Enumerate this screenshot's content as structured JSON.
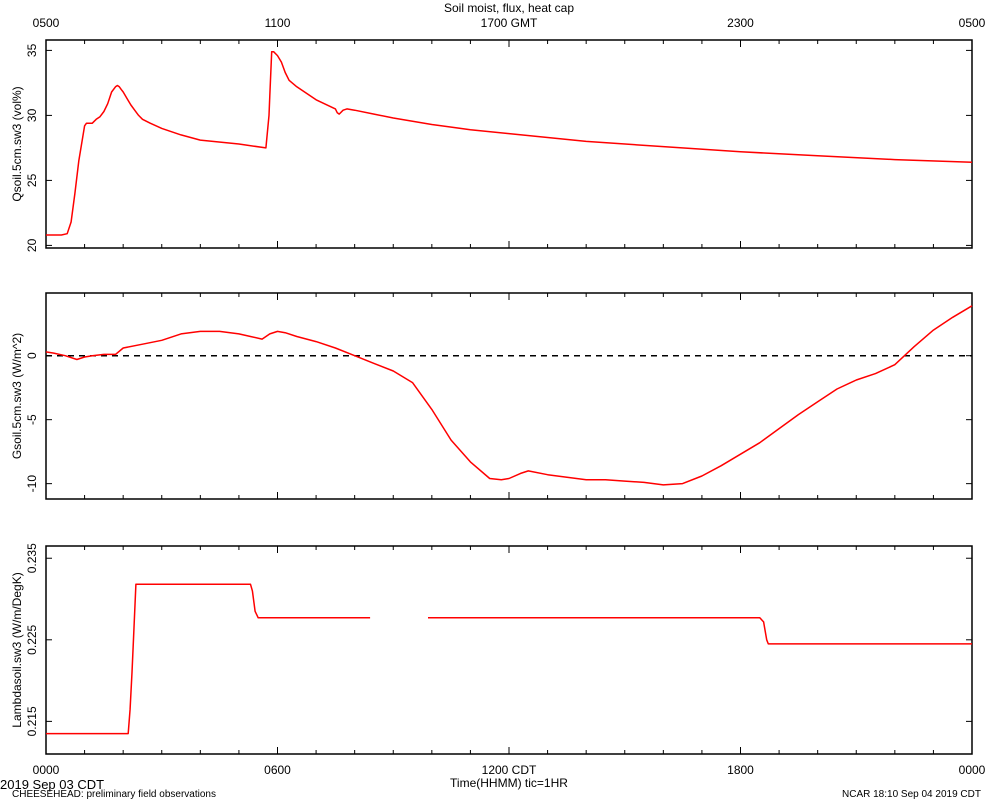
{
  "chart_data": [
    {
      "type": "line",
      "title": "Soil moist, flux, heat cap",
      "ylabel": "Qsoil.5cm.sw3 (vol%)",
      "ylim": [
        19.8,
        35.8
      ],
      "yticks": [
        20,
        25,
        30,
        35
      ],
      "xlim": [
        0,
        24
      ],
      "top_axis_ticks": [
        "0500",
        "1100",
        "1700 GMT",
        "2300",
        "0500"
      ],
      "series": [
        {
          "color": "#ff0000",
          "x": [
            0,
            0.4,
            0.55,
            0.65,
            0.75,
            0.85,
            1.0,
            1.05,
            1.1,
            1.2,
            1.3,
            1.4,
            1.5,
            1.6,
            1.7,
            1.8,
            1.85,
            1.9,
            1.95,
            2.0,
            2.1,
            2.2,
            2.3,
            2.4,
            2.5,
            2.7,
            3.0,
            3.5,
            4.0,
            5.0,
            5.7,
            5.78,
            5.8,
            5.85,
            5.9,
            6.0,
            6.1,
            6.2,
            6.3,
            6.5,
            7.0,
            7.5,
            7.55,
            7.6,
            7.7,
            7.8,
            8.0,
            8.5,
            9.0,
            10.0,
            11.0,
            12.0,
            14.0,
            16.0,
            18.0,
            20.0,
            22.0,
            24.0
          ],
          "y": [
            20.8,
            20.8,
            20.9,
            21.8,
            24.0,
            26.5,
            29.2,
            29.4,
            29.4,
            29.4,
            29.7,
            29.9,
            30.3,
            30.9,
            31.8,
            32.2,
            32.3,
            32.2,
            32.0,
            31.8,
            31.3,
            30.8,
            30.4,
            30.0,
            29.7,
            29.4,
            29.0,
            28.5,
            28.1,
            27.8,
            27.5,
            30.0,
            31.5,
            34.9,
            34.9,
            34.6,
            34.1,
            33.3,
            32.7,
            32.2,
            31.2,
            30.5,
            30.2,
            30.1,
            30.4,
            30.5,
            30.4,
            30.1,
            29.8,
            29.3,
            28.9,
            28.6,
            28.0,
            27.6,
            27.2,
            26.9,
            26.6,
            26.4
          ]
        }
      ]
    },
    {
      "type": "line",
      "ylabel": "Gsoil.5cm.sw3 (W/m^2)",
      "ylim": [
        -11.2,
        4.9
      ],
      "yticks": [
        -10,
        -5,
        0
      ],
      "xlim": [
        0,
        24
      ],
      "reference_line": 0,
      "series": [
        {
          "color": "#ff0000",
          "x": [
            0,
            0.2,
            0.5,
            0.8,
            1.0,
            1.2,
            1.5,
            1.8,
            2.0,
            2.5,
            3.0,
            3.5,
            4.0,
            4.5,
            5.0,
            5.3,
            5.6,
            5.8,
            6.0,
            6.2,
            6.5,
            7.0,
            7.5,
            8.0,
            8.5,
            9.0,
            9.5,
            10.0,
            10.5,
            11.0,
            11.5,
            11.8,
            12.0,
            12.3,
            12.5,
            13.0,
            13.5,
            14.0,
            14.5,
            15.0,
            15.5,
            16.0,
            16.5,
            17.0,
            17.5,
            18.0,
            18.5,
            19.0,
            19.5,
            20.0,
            20.5,
            21.0,
            21.5,
            22.0,
            22.5,
            23.0,
            23.5,
            24.0
          ],
          "y": [
            0.3,
            0.2,
            0.0,
            -0.3,
            -0.1,
            0.0,
            0.1,
            0.1,
            0.6,
            0.9,
            1.2,
            1.7,
            1.9,
            1.9,
            1.7,
            1.5,
            1.3,
            1.7,
            1.9,
            1.8,
            1.5,
            1.1,
            0.6,
            0.0,
            -0.6,
            -1.2,
            -2.1,
            -4.2,
            -6.6,
            -8.3,
            -9.6,
            -9.7,
            -9.6,
            -9.2,
            -9.0,
            -9.3,
            -9.5,
            -9.7,
            -9.7,
            -9.8,
            -9.9,
            -10.1,
            -10.0,
            -9.4,
            -8.6,
            -7.7,
            -6.8,
            -5.7,
            -4.6,
            -3.6,
            -2.6,
            -1.9,
            -1.4,
            -0.7,
            0.7,
            2.0,
            3.0,
            3.9
          ]
        }
      ]
    },
    {
      "type": "line",
      "ylabel": "Lambdasoil.sw3 (W/m/DegK)",
      "ylim": [
        0.211,
        0.2365
      ],
      "yticks": [
        0.215,
        0.225,
        0.235
      ],
      "xlim": [
        0,
        24
      ],
      "xlabel": "Time(HHMM)  tic=1HR",
      "bottom_axis_ticks": [
        "0000",
        "0600",
        "1200 CDT",
        "1800",
        "0000"
      ],
      "series": [
        {
          "color": "#ff0000",
          "segments": [
            {
              "x": [
                0,
                2.13,
                2.18,
                2.23,
                2.28,
                2.33,
                5.3,
                5.35,
                5.42,
                5.5,
                8.4
              ],
              "y": [
                0.2135,
                0.2135,
                0.2165,
                0.221,
                0.2265,
                0.2318,
                0.2318,
                0.231,
                0.2285,
                0.2277,
                0.2277
              ]
            },
            {
              "x": [
                9.9,
                18.5,
                18.6,
                18.68,
                18.72,
                24.0
              ],
              "y": [
                0.2277,
                0.2277,
                0.2272,
                0.225,
                0.2245,
                0.2245
              ]
            }
          ]
        }
      ]
    }
  ],
  "footer": {
    "date_left": "2019 Sep 03 CDT",
    "project": "CHEESEHEAD: preliminary field observations",
    "stamp": "NCAR 18:10 Sep 04 2019 CDT"
  }
}
